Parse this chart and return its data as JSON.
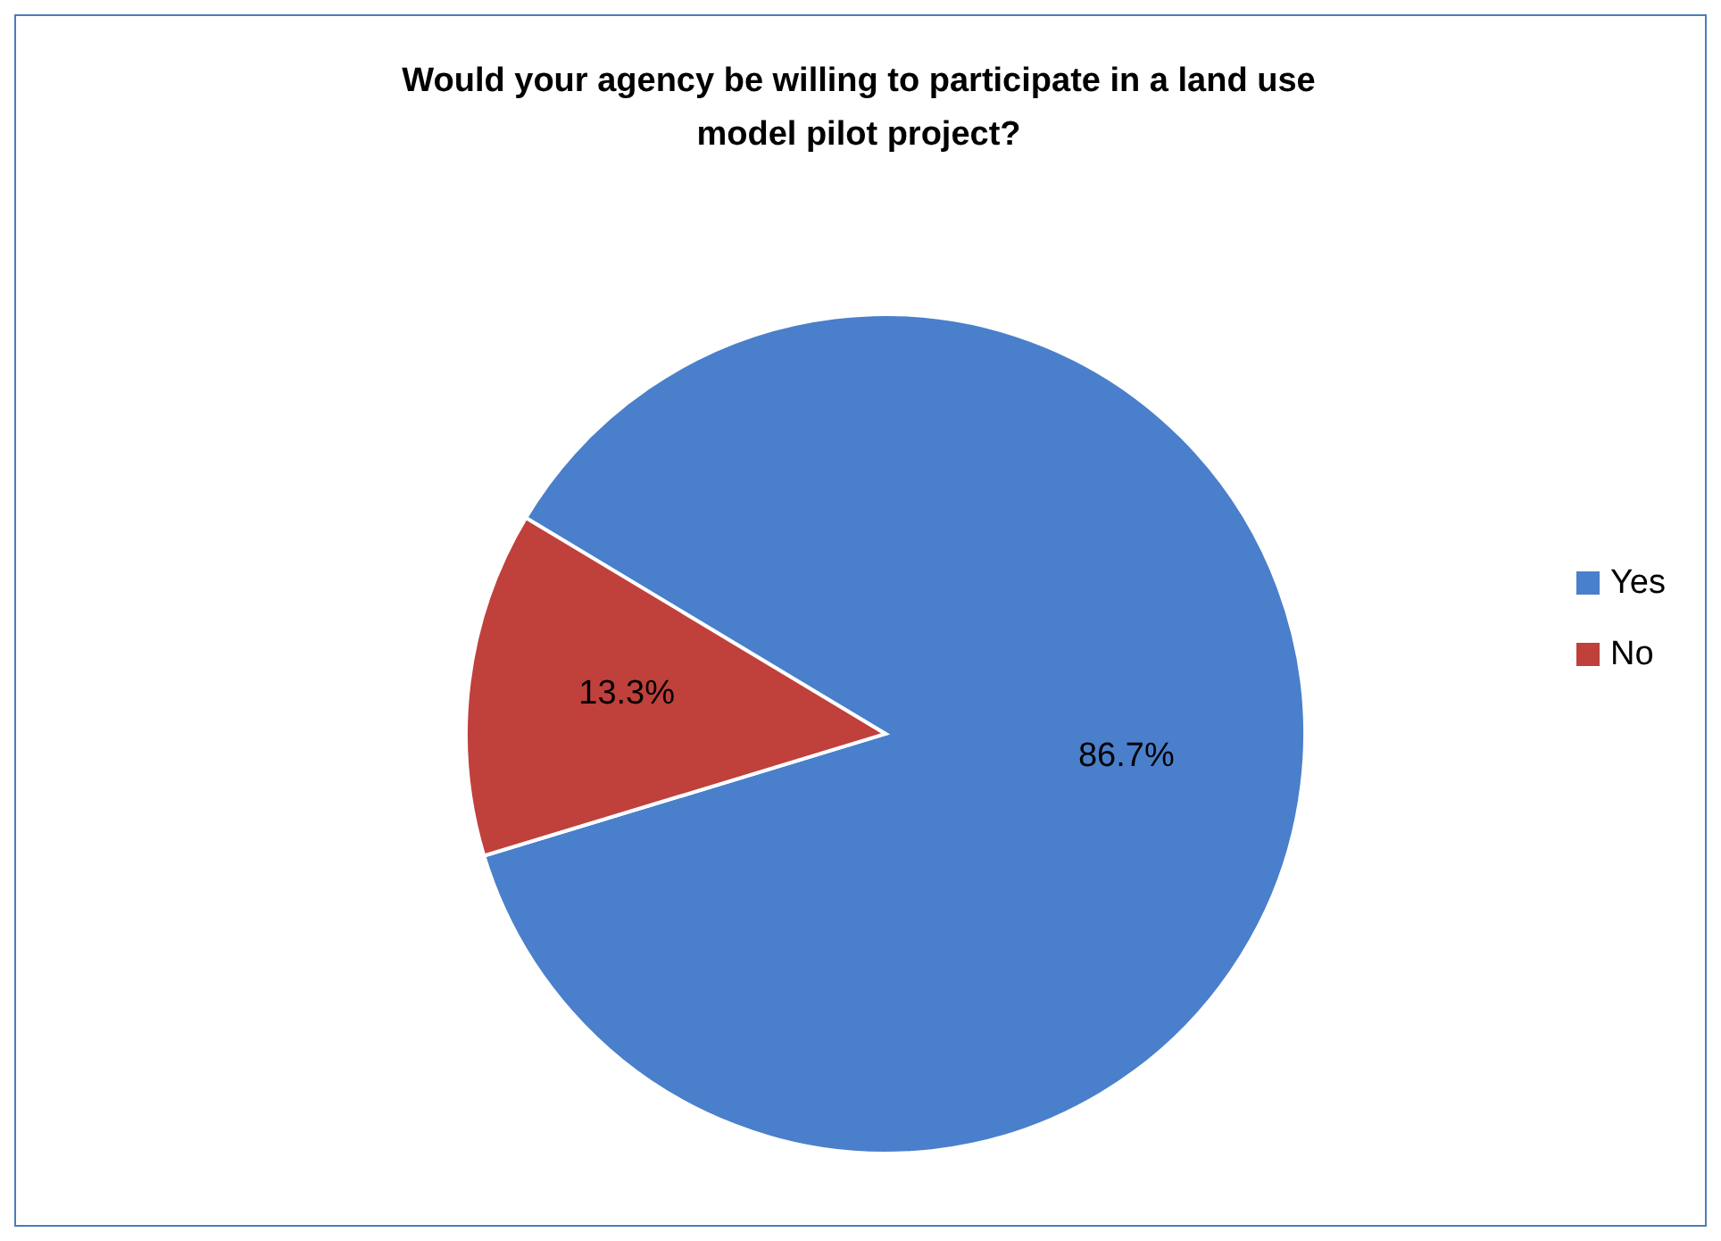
{
  "chart_data": {
    "type": "pie",
    "title": "Would your agency be willing to participate in a land use model pilot project?",
    "categories": [
      "Yes",
      "No"
    ],
    "values": [
      86.7,
      13.3
    ],
    "colors": [
      "#4a7fcb",
      "#c0403b"
    ],
    "value_labels": [
      "86.7%",
      "13.3%"
    ],
    "legend": "right"
  }
}
